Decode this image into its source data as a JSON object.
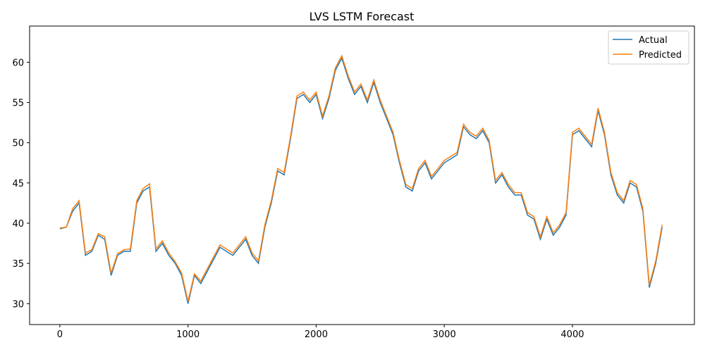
{
  "chart_data": {
    "type": "line",
    "title": "LVS LSTM Forecast",
    "x": [
      0,
      50,
      100,
      150,
      200,
      250,
      300,
      350,
      400,
      450,
      500,
      550,
      600,
      650,
      700,
      750,
      800,
      850,
      900,
      950,
      1000,
      1050,
      1100,
      1150,
      1200,
      1250,
      1300,
      1350,
      1400,
      1450,
      1500,
      1550,
      1600,
      1650,
      1700,
      1750,
      1800,
      1850,
      1900,
      1950,
      2000,
      2050,
      2100,
      2150,
      2200,
      2250,
      2300,
      2350,
      2400,
      2450,
      2500,
      2550,
      2600,
      2650,
      2700,
      2750,
      2800,
      2850,
      2900,
      2950,
      3000,
      3050,
      3100,
      3150,
      3200,
      3250,
      3300,
      3350,
      3400,
      3450,
      3500,
      3550,
      3600,
      3650,
      3700,
      3750,
      3800,
      3850,
      3900,
      3950,
      4000,
      4050,
      4100,
      4150,
      4200,
      4250,
      4300,
      4350,
      4400,
      4450,
      4500,
      4550,
      4600,
      4650,
      4700
    ],
    "series": [
      {
        "name": "Actual",
        "color": "#1f77b4",
        "values": [
          39.3,
          39.5,
          41.5,
          42.5,
          36.0,
          36.5,
          38.5,
          38.0,
          33.5,
          36.0,
          36.5,
          36.5,
          42.5,
          44.0,
          44.5,
          36.5,
          37.5,
          36.0,
          35.0,
          33.5,
          30.0,
          33.5,
          32.5,
          34.0,
          35.5,
          37.0,
          36.5,
          36.0,
          37.0,
          38.0,
          36.0,
          35.0,
          39.5,
          42.5,
          46.5,
          46.0,
          50.5,
          55.5,
          56.0,
          55.0,
          56.0,
          53.0,
          55.5,
          59.0,
          60.5,
          58.0,
          56.0,
          57.0,
          55.0,
          57.5,
          55.0,
          53.0,
          51.0,
          47.5,
          44.5,
          44.0,
          46.5,
          47.5,
          45.5,
          46.5,
          47.5,
          48.0,
          48.5,
          52.0,
          51.0,
          50.5,
          51.5,
          50.0,
          45.0,
          46.0,
          44.5,
          43.5,
          43.5,
          41.0,
          40.5,
          38.0,
          40.5,
          38.5,
          39.5,
          41.0,
          51.0,
          51.5,
          50.5,
          49.5,
          54.0,
          51.0,
          46.0,
          43.5,
          42.5,
          45.0,
          44.5,
          41.5,
          32.0,
          35.0,
          39.5
        ]
      },
      {
        "name": "Predicted",
        "color": "#ff7f0e",
        "values": [
          39.4,
          39.5,
          41.8,
          42.8,
          36.3,
          36.7,
          38.7,
          38.3,
          33.8,
          36.2,
          36.7,
          36.8,
          42.8,
          44.3,
          44.9,
          36.8,
          37.8,
          36.3,
          35.2,
          33.8,
          30.3,
          33.7,
          32.8,
          34.3,
          35.8,
          37.3,
          36.8,
          36.3,
          37.3,
          38.3,
          36.3,
          35.3,
          39.8,
          42.8,
          46.8,
          46.3,
          50.8,
          55.8,
          56.3,
          55.3,
          56.3,
          53.3,
          55.8,
          59.3,
          60.8,
          58.3,
          56.3,
          57.3,
          55.3,
          57.8,
          55.3,
          53.3,
          51.3,
          47.8,
          44.8,
          44.3,
          46.8,
          47.8,
          45.8,
          46.8,
          47.8,
          48.3,
          48.8,
          52.3,
          51.3,
          50.8,
          51.8,
          50.3,
          45.3,
          46.3,
          44.8,
          43.8,
          43.8,
          41.3,
          40.8,
          38.3,
          40.8,
          38.8,
          39.8,
          41.3,
          51.3,
          51.8,
          50.8,
          49.8,
          54.3,
          51.3,
          46.3,
          43.8,
          42.8,
          45.3,
          44.8,
          41.8,
          32.3,
          35.3,
          39.8
        ]
      }
    ],
    "xlim": [
      -236,
      4952
    ],
    "ylim": [
      27.4,
      64.5
    ],
    "xticks": [
      0,
      1000,
      2000,
      3000,
      4000
    ],
    "yticks": [
      30,
      35,
      40,
      45,
      50,
      55,
      60
    ],
    "legend": "upper right"
  }
}
